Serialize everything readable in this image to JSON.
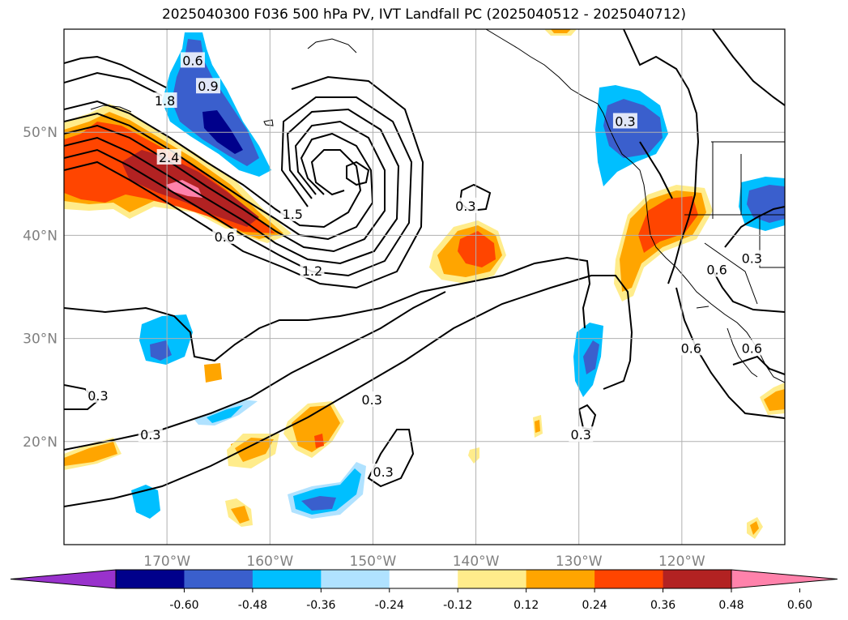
{
  "title": "2025040300 F036 500 hPa PV, IVT Landfall PC (2025040512 - 2025040712)",
  "map": {
    "lon_range": [
      -180,
      -110
    ],
    "lat_range": [
      10,
      60
    ],
    "lon_ticks": [
      {
        "value": -170,
        "label": "170°W"
      },
      {
        "value": -160,
        "label": "160°W"
      },
      {
        "value": -150,
        "label": "150°W"
      },
      {
        "value": -140,
        "label": "140°W"
      },
      {
        "value": -130,
        "label": "130°W"
      },
      {
        "value": -120,
        "label": "120°W"
      }
    ],
    "lat_ticks": [
      {
        "value": 20,
        "label": "20°N"
      },
      {
        "value": 30,
        "label": "30°N"
      },
      {
        "value": 40,
        "label": "40°N"
      },
      {
        "value": 50,
        "label": "50°N"
      }
    ],
    "grid": true,
    "tick_label_color": "#808080"
  },
  "contour_labels": [
    {
      "text": "0.6",
      "lon": -167.5,
      "lat": 56.9
    },
    {
      "text": "0.9",
      "lon": -166.0,
      "lat": 54.4
    },
    {
      "text": "1.8",
      "lon": -170.2,
      "lat": 53.0
    },
    {
      "text": "0.3",
      "lon": -125.5,
      "lat": 51.0
    },
    {
      "text": "2.4",
      "lon": -169.8,
      "lat": 47.5
    },
    {
      "text": "1.5",
      "lon": -157.8,
      "lat": 42.0
    },
    {
      "text": "0.3",
      "lon": -141.0,
      "lat": 42.8
    },
    {
      "text": "0.6",
      "lon": -164.4,
      "lat": 39.8
    },
    {
      "text": "1.2",
      "lon": -155.9,
      "lat": 36.5
    },
    {
      "text": "0.6",
      "lon": -116.6,
      "lat": 36.6
    },
    {
      "text": "0.3",
      "lon": -113.2,
      "lat": 37.7
    },
    {
      "text": "0.6",
      "lon": -119.1,
      "lat": 29.0
    },
    {
      "text": "0.6",
      "lon": -113.2,
      "lat": 29.0
    },
    {
      "text": "0.3",
      "lon": -176.7,
      "lat": 24.4
    },
    {
      "text": "0.3",
      "lon": -150.1,
      "lat": 24.0
    },
    {
      "text": "0.3",
      "lon": -171.6,
      "lat": 20.6
    },
    {
      "text": "0.3",
      "lon": -129.8,
      "lat": 20.6
    },
    {
      "text": "0.3",
      "lon": -149.0,
      "lat": 17.0
    }
  ],
  "colorbar": {
    "levels": [
      "-0.60",
      "-0.48",
      "-0.36",
      "-0.24",
      "-0.12",
      "0.12",
      "0.24",
      "0.36",
      "0.48",
      "0.60"
    ],
    "colors": {
      "under": "#9932cc",
      "neg_060_048": "#00008b",
      "neg_048_036": "#3a5fcd",
      "neg_036_024": "#00bfff",
      "neg_024_012": "#b0e2ff",
      "neutral": "#ffffff",
      "pos_012_024": "#ffec8b",
      "pos_024_036": "#ffa500",
      "pos_036_048": "#ff4500",
      "pos_048_060": "#b22222",
      "over": "#ff82ab"
    }
  }
}
